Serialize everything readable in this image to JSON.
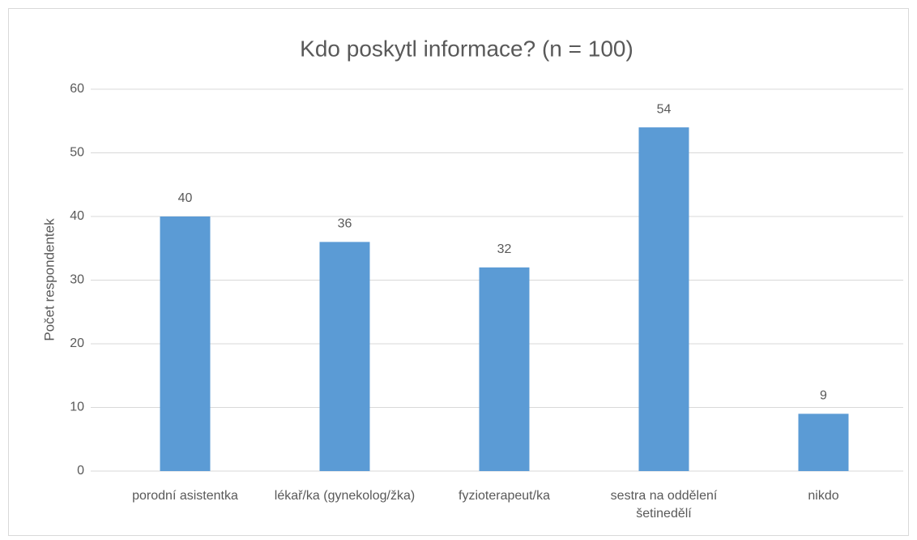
{
  "chart_data": {
    "type": "bar",
    "title": "Kdo poskytl informace? (n = 100)",
    "y_label": "Počet respondentek",
    "categories": [
      "porodní asistentka",
      "lékař/ka (gynekolog/žka)",
      "fyzioterapeut/ka",
      "sestra na oddělení šetinedělí",
      "nikdo"
    ],
    "values": [
      40,
      36,
      32,
      54,
      9
    ],
    "color": "#5b9bd5",
    "ylim": [
      0,
      60
    ],
    "yticks": [
      0,
      10,
      20,
      30,
      40,
      50,
      60
    ],
    "grid": true
  }
}
